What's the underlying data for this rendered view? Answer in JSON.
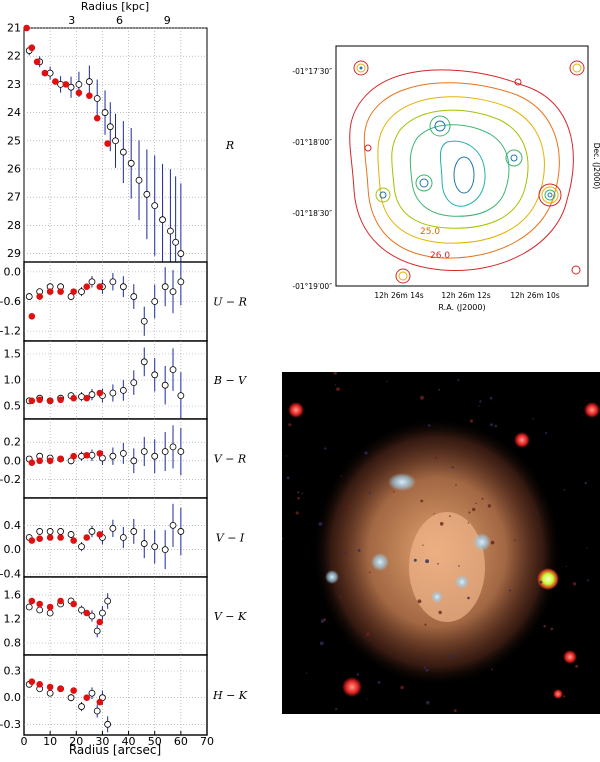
{
  "left_figure": {
    "top_axis_label": "Radius [kpc]",
    "top_ticks": [
      {
        "v": 3,
        "label": "3"
      },
      {
        "v": 6,
        "label": "6"
      },
      {
        "v": 9,
        "label": "9"
      }
    ],
    "bottom_axis_label": "Radius [arcsec]",
    "bottom_ticks": [
      "0",
      "10",
      "20",
      "30",
      "40",
      "50",
      "60",
      "70"
    ]
  },
  "chart_data": [
    {
      "type": "scatter",
      "label": "R",
      "invert_y": true,
      "ylim": [
        21,
        29.3
      ],
      "yticks": [
        "21",
        "22",
        "23",
        "24",
        "25",
        "26",
        "27",
        "28",
        "29"
      ],
      "series": [
        {
          "marker": "filled-red",
          "points": [
            [
              1,
              21
            ],
            [
              3,
              21.7
            ],
            [
              5,
              22.2
            ],
            [
              8,
              22.6
            ],
            [
              12,
              22.9
            ],
            [
              16,
              23.0
            ],
            [
              21,
              23.3
            ],
            [
              25,
              23.4
            ],
            [
              28,
              24.2
            ],
            [
              32,
              25.1
            ]
          ]
        },
        {
          "marker": "open-errorbars",
          "points": [
            [
              2,
              21.8
            ],
            [
              6,
              22.2
            ],
            [
              10,
              22.6
            ],
            [
              14,
              23.0
            ],
            [
              18,
              23.1
            ],
            [
              21,
              23.0
            ],
            [
              25,
              22.9
            ],
            [
              28,
              23.5
            ],
            [
              31,
              24.0
            ],
            [
              33,
              24.5
            ],
            [
              35,
              25.0
            ],
            [
              38,
              25.4
            ],
            [
              41,
              25.8
            ],
            [
              44,
              26.4
            ],
            [
              47,
              26.9
            ],
            [
              50,
              27.3
            ],
            [
              53,
              27.8
            ],
            [
              56,
              28.2
            ],
            [
              58,
              28.6
            ],
            [
              60,
              29.0
            ]
          ]
        }
      ]
    },
    {
      "type": "scatter",
      "label": "U − R",
      "ylim": [
        -1.4,
        0.2
      ],
      "yticks": [
        "0.0",
        "-0.6",
        "-1.2"
      ],
      "series": [
        {
          "marker": "filled-red",
          "points": [
            [
              3,
              -0.9
            ],
            [
              6,
              -0.5
            ],
            [
              10,
              -0.4
            ],
            [
              14,
              -0.4
            ],
            [
              19,
              -0.4
            ],
            [
              24,
              -0.3
            ],
            [
              29,
              -0.3
            ]
          ]
        },
        {
          "marker": "open-errorbars",
          "points": [
            [
              2,
              -0.5
            ],
            [
              6,
              -0.4
            ],
            [
              10,
              -0.3
            ],
            [
              14,
              -0.3
            ],
            [
              18,
              -0.5
            ],
            [
              22,
              -0.4
            ],
            [
              26,
              -0.2
            ],
            [
              30,
              -0.3
            ],
            [
              34,
              -0.2
            ],
            [
              38,
              -0.3
            ],
            [
              42,
              -0.5
            ],
            [
              46,
              -1.0
            ],
            [
              50,
              -0.6
            ],
            [
              54,
              -0.3
            ],
            [
              57,
              -0.4
            ],
            [
              60,
              -0.2
            ]
          ]
        }
      ]
    },
    {
      "type": "scatter",
      "label": "B − V",
      "ylim": [
        0.25,
        1.75
      ],
      "yticks": [
        "1.5",
        "1.0",
        "0.5"
      ],
      "series": [
        {
          "marker": "filled-red",
          "points": [
            [
              3,
              0.6
            ],
            [
              6,
              0.62
            ],
            [
              10,
              0.6
            ],
            [
              14,
              0.62
            ],
            [
              19,
              0.65
            ],
            [
              24,
              0.65
            ],
            [
              29,
              0.75
            ]
          ]
        },
        {
          "marker": "open-errorbars",
          "points": [
            [
              2,
              0.6
            ],
            [
              6,
              0.65
            ],
            [
              10,
              0.6
            ],
            [
              14,
              0.65
            ],
            [
              18,
              0.7
            ],
            [
              22,
              0.68
            ],
            [
              26,
              0.72
            ],
            [
              30,
              0.7
            ],
            [
              34,
              0.75
            ],
            [
              38,
              0.8
            ],
            [
              42,
              0.95
            ],
            [
              46,
              1.35
            ],
            [
              50,
              1.1
            ],
            [
              54,
              0.9
            ],
            [
              57,
              1.2
            ],
            [
              60,
              0.7
            ]
          ]
        }
      ]
    },
    {
      "type": "scatter",
      "label": "V − R",
      "ylim": [
        -0.4,
        0.45
      ],
      "yticks": [
        "0.2",
        "0.0",
        "-0.2"
      ],
      "series": [
        {
          "marker": "filled-red",
          "points": [
            [
              3,
              -0.02
            ],
            [
              6,
              0.0
            ],
            [
              10,
              0.0
            ],
            [
              14,
              0.02
            ],
            [
              19,
              0.05
            ],
            [
              24,
              0.06
            ],
            [
              29,
              0.08
            ]
          ]
        },
        {
          "marker": "open-errorbars",
          "points": [
            [
              2,
              0.02
            ],
            [
              6,
              0.05
            ],
            [
              10,
              0.03
            ],
            [
              14,
              0.02
            ],
            [
              18,
              0.0
            ],
            [
              22,
              0.05
            ],
            [
              26,
              0.06
            ],
            [
              30,
              0.03
            ],
            [
              34,
              0.05
            ],
            [
              38,
              0.08
            ],
            [
              42,
              0.0
            ],
            [
              46,
              0.1
            ],
            [
              50,
              0.05
            ],
            [
              54,
              0.1
            ],
            [
              57,
              0.15
            ],
            [
              60,
              0.1
            ]
          ]
        }
      ]
    },
    {
      "type": "scatter",
      "label": "V − I",
      "ylim": [
        -0.45,
        0.85
      ],
      "yticks": [
        "0.4",
        "0.0",
        "-0.4"
      ],
      "series": [
        {
          "marker": "filled-red",
          "points": [
            [
              3,
              0.15
            ],
            [
              6,
              0.18
            ],
            [
              10,
              0.2
            ],
            [
              14,
              0.2
            ],
            [
              19,
              0.15
            ],
            [
              24,
              0.2
            ],
            [
              29,
              0.25
            ]
          ]
        },
        {
          "marker": "open-errorbars",
          "points": [
            [
              2,
              0.2
            ],
            [
              6,
              0.3
            ],
            [
              10,
              0.3
            ],
            [
              14,
              0.3
            ],
            [
              18,
              0.25
            ],
            [
              22,
              0.05
            ],
            [
              26,
              0.3
            ],
            [
              30,
              0.2
            ],
            [
              34,
              0.35
            ],
            [
              38,
              0.2
            ],
            [
              42,
              0.3
            ],
            [
              46,
              0.1
            ],
            [
              50,
              0.05
            ],
            [
              54,
              0.0
            ],
            [
              57,
              0.4
            ],
            [
              60,
              0.3
            ]
          ]
        }
      ]
    },
    {
      "type": "scatter",
      "label": "V − K",
      "ylim": [
        0.6,
        1.9
      ],
      "yticks": [
        "1.6",
        "1.2",
        "0.8"
      ],
      "series": [
        {
          "marker": "filled-red",
          "points": [
            [
              3,
              1.5
            ],
            [
              6,
              1.45
            ],
            [
              10,
              1.4
            ],
            [
              14,
              1.5
            ],
            [
              19,
              1.45
            ],
            [
              24,
              1.3
            ],
            [
              29,
              1.15
            ]
          ]
        },
        {
          "marker": "open-errorbars",
          "points": [
            [
              2,
              1.4
            ],
            [
              6,
              1.35
            ],
            [
              10,
              1.3
            ],
            [
              14,
              1.45
            ],
            [
              18,
              1.5
            ],
            [
              22,
              1.35
            ],
            [
              26,
              1.25
            ],
            [
              28,
              1.0
            ],
            [
              30,
              1.3
            ],
            [
              32,
              1.5
            ]
          ]
        }
      ]
    },
    {
      "type": "scatter",
      "label": "H − K",
      "ylim": [
        -0.42,
        0.48
      ],
      "yticks": [
        "0.3",
        "0.0",
        "-0.3"
      ],
      "series": [
        {
          "marker": "filled-red",
          "points": [
            [
              3,
              0.18
            ],
            [
              6,
              0.15
            ],
            [
              10,
              0.12
            ],
            [
              14,
              0.1
            ],
            [
              19,
              0.08
            ],
            [
              24,
              0.0
            ],
            [
              29,
              -0.05
            ]
          ]
        },
        {
          "marker": "open-errorbars",
          "points": [
            [
              2,
              0.15
            ],
            [
              6,
              0.1
            ],
            [
              10,
              0.05
            ],
            [
              14,
              0.1
            ],
            [
              18,
              0.0
            ],
            [
              22,
              -0.1
            ],
            [
              26,
              0.05
            ],
            [
              28,
              -0.15
            ],
            [
              30,
              0.0
            ],
            [
              32,
              -0.3
            ]
          ]
        }
      ]
    }
  ],
  "contour_map": {
    "dec_labels": [
      "-01°17′30″",
      "-01°18′00″",
      "-01°18′30″",
      "-01°19′00″"
    ],
    "ra_labels": [
      "12h 26m 14s",
      "12h 26m 12s",
      "12h 26m 10s"
    ],
    "xlabel": "R.A. (J2000)",
    "ylabel": "Dec. (J2000)",
    "contour_labels": [
      "25.0",
      "26.0"
    ],
    "contour_colors": [
      "#d62728",
      "#e8731a",
      "#e3b300",
      "#a6c000",
      "#3cb371",
      "#20b2aa",
      "#1f77b4"
    ]
  },
  "color_image": {
    "description_colors": {
      "background": "#000000",
      "halo": "#e8a070",
      "knots": "#9fc8e0",
      "star": "#c8ff30"
    }
  }
}
